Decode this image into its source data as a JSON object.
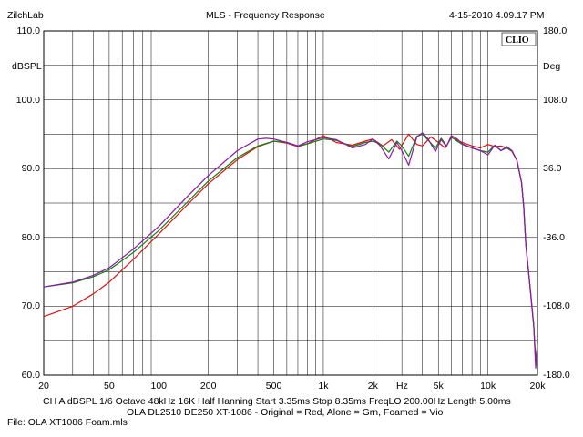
{
  "header": {
    "left": "ZilchLab",
    "center": "MLS - Frequency Response",
    "right": "4-15-2010 4.09.17 PM"
  },
  "logo_text": "CLIO",
  "footer": {
    "settings": "CH A   dBSPL   1/6 Octave   48kHz   16K   Half Hanning   Start 3.35ms    Stop 8.35ms    FreqLO 200.00Hz   Length 5.00ms",
    "legend": "OLA DL2510 DE250 XT-1086 - Original = Red, Alone = Grn, Foamed = Vio",
    "file": "File: OLA XT1086 Foam.mls"
  },
  "chart_data": {
    "type": "line",
    "title": "MLS - Frequency Response",
    "x_scale": "log",
    "xlim": [
      20,
      20000
    ],
    "ylim": [
      60,
      110
    ],
    "y2lim": [
      -180,
      180
    ],
    "grid": true,
    "ylabel": "dBSPL",
    "y2label": "Deg",
    "xlabel": "Hz",
    "x_tick_labels": [
      {
        "value": 20,
        "label": "20"
      },
      {
        "value": 50,
        "label": "50"
      },
      {
        "value": 100,
        "label": "100"
      },
      {
        "value": 200,
        "label": "200"
      },
      {
        "value": 500,
        "label": "500"
      },
      {
        "value": 1000,
        "label": "1k"
      },
      {
        "value": 2000,
        "label": "2k"
      },
      {
        "value": 5000,
        "label": "5k"
      },
      {
        "value": 10000,
        "label": "10k"
      },
      {
        "value": 20000,
        "label": "20k"
      }
    ],
    "x_unit_label": "Hz",
    "y_tick_labels": [
      {
        "value": 110,
        "label": "110.0"
      },
      {
        "value": 100,
        "label": "100.0"
      },
      {
        "value": 90,
        "label": "90.0"
      },
      {
        "value": 80,
        "label": "80.0"
      },
      {
        "value": 70,
        "label": "70.0"
      },
      {
        "value": 60,
        "label": "60.0"
      }
    ],
    "y2_tick_labels": [
      {
        "value": 180,
        "label": "180.0"
      },
      {
        "value": 108,
        "label": "108.0"
      },
      {
        "value": 36,
        "label": "36.0"
      },
      {
        "value": -36,
        "label": "-36.0"
      },
      {
        "value": -108,
        "label": "-108.0"
      },
      {
        "value": -180,
        "label": "-180.0"
      }
    ],
    "series": [
      {
        "key": "original",
        "color": "#e01010",
        "x": [
          20,
          30,
          40,
          50,
          70,
          100,
          150,
          200,
          300,
          400,
          500,
          600,
          700,
          800,
          1000,
          1200,
          1500,
          1800,
          2000,
          2300,
          2600,
          2900,
          3300,
          3700,
          4000,
          4500,
          5000,
          5500,
          6000,
          7000,
          8000,
          9000,
          10000,
          11000,
          12000,
          13000,
          14000,
          15000,
          16000,
          16500,
          17000,
          18000,
          19000,
          19500,
          20000
        ],
        "values": [
          68.5,
          70.0,
          71.8,
          73.5,
          76.8,
          80.5,
          84.8,
          87.8,
          91.3,
          93.2,
          94.0,
          93.7,
          93.2,
          93.6,
          94.8,
          93.8,
          93.4,
          94.0,
          94.3,
          93.3,
          94.2,
          92.8,
          95.0,
          93.5,
          93.3,
          94.6,
          93.8,
          93.0,
          94.5,
          93.8,
          93.3,
          93.0,
          93.5,
          93.2,
          93.3,
          93.0,
          92.5,
          91.2,
          88.0,
          84.5,
          79.0,
          73.0,
          67.0,
          62.0,
          64.5
        ]
      },
      {
        "key": "alone",
        "color": "#108010",
        "x": [
          20,
          30,
          40,
          50,
          70,
          100,
          150,
          200,
          300,
          400,
          500,
          600,
          700,
          800,
          1000,
          1200,
          1500,
          1800,
          2000,
          2200,
          2500,
          2800,
          3000,
          3300,
          3700,
          4000,
          4300,
          4800,
          5200,
          5600,
          6000,
          6500,
          7000,
          8000,
          9000,
          10000,
          11000,
          12000,
          13000,
          14000,
          15000,
          16000,
          16500,
          17000,
          18000,
          19000,
          19500,
          20000
        ],
        "values": [
          72.8,
          73.4,
          74.3,
          75.3,
          77.8,
          81.0,
          85.2,
          88.2,
          91.6,
          93.3,
          94.0,
          93.8,
          93.3,
          93.6,
          94.3,
          94.1,
          93.2,
          93.8,
          94.0,
          93.6,
          92.4,
          94.0,
          93.3,
          91.8,
          94.7,
          95.0,
          94.2,
          93.0,
          94.4,
          93.3,
          94.6,
          94.0,
          93.5,
          93.0,
          92.6,
          92.4,
          93.4,
          92.6,
          93.0,
          92.6,
          91.2,
          88.0,
          84.5,
          79.0,
          73.0,
          67.0,
          62.0,
          64.5
        ]
      },
      {
        "key": "foamed",
        "color": "#8a18a8",
        "x": [
          20,
          30,
          40,
          50,
          70,
          100,
          150,
          200,
          300,
          400,
          450,
          500,
          600,
          700,
          800,
          1000,
          1200,
          1500,
          1800,
          2000,
          2200,
          2500,
          2800,
          3000,
          3300,
          3700,
          4000,
          4300,
          4800,
          5200,
          5600,
          6000,
          6500,
          7000,
          8000,
          9000,
          10000,
          11000,
          12000,
          13000,
          14000,
          15000,
          16000,
          16500,
          17000,
          18000,
          19000,
          19500,
          20000
        ],
        "values": [
          72.8,
          73.5,
          74.5,
          75.6,
          78.3,
          81.6,
          86.0,
          89.0,
          92.6,
          94.3,
          94.4,
          94.3,
          93.8,
          93.3,
          93.9,
          94.5,
          94.2,
          93.0,
          93.5,
          94.3,
          93.4,
          91.4,
          93.8,
          92.6,
          90.5,
          94.6,
          95.2,
          94.4,
          92.5,
          94.2,
          93.2,
          94.8,
          94.3,
          93.6,
          93.0,
          92.6,
          92.0,
          93.4,
          92.6,
          93.2,
          92.6,
          91.2,
          88.0,
          84.5,
          79.0,
          73.0,
          67.0,
          61.0,
          64.0
        ]
      }
    ]
  }
}
